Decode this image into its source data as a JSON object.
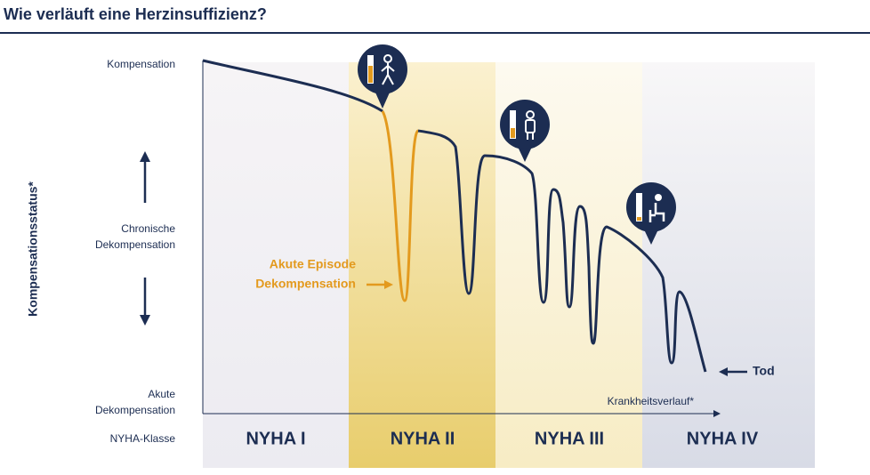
{
  "header": {
    "title": "Wie verläuft eine Herzinsuffizienz?"
  },
  "y_axis": {
    "label": "Kompensationsstatus*",
    "levels": [
      [
        "Kompensation"
      ],
      [
        "Chronische",
        "Dekompensation"
      ],
      [
        "Akute",
        "Dekompensation"
      ]
    ]
  },
  "x_axis": {
    "label": "Krankheitsverlauf*"
  },
  "row_label": "NYHA-Klasse",
  "classes": [
    "NYHA I",
    "NYHA II",
    "NYHA III",
    "NYHA IV"
  ],
  "annotations": {
    "episode": [
      "Akute Episode",
      "Dekompensation"
    ],
    "death": "Tod"
  }
}
